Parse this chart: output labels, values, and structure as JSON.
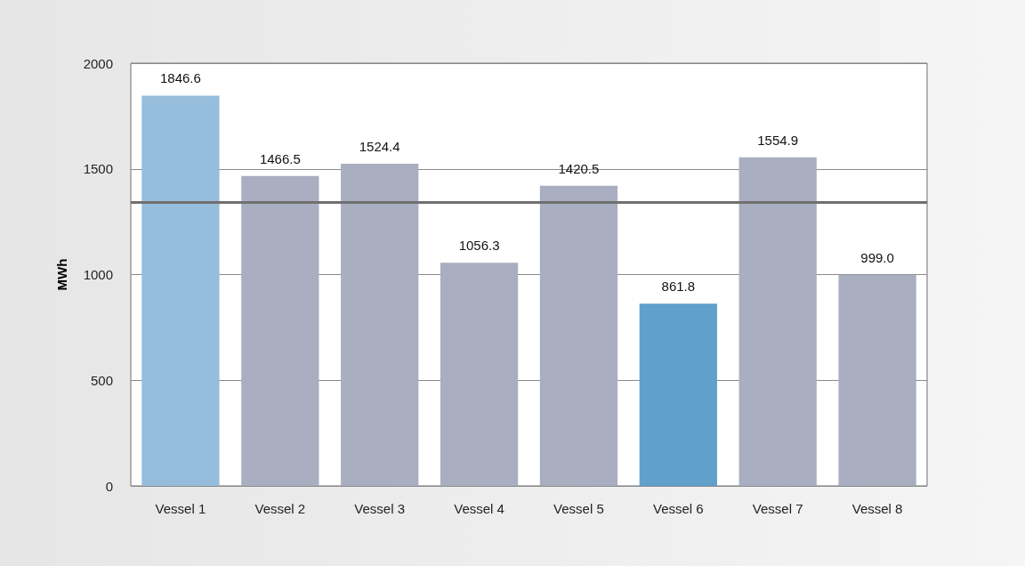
{
  "chart_data": {
    "type": "bar",
    "ylabel": "MWh",
    "categories": [
      "Vessel 1",
      "Vessel 2",
      "Vessel 3",
      "Vessel 4",
      "Vessel 5",
      "Vessel 6",
      "Vessel 7",
      "Vessel 8"
    ],
    "values": [
      1846.6,
      1466.5,
      1524.4,
      1056.3,
      1420.5,
      861.8,
      1554.9,
      999.0
    ],
    "colors": [
      "#97bddc",
      "#a9aec0",
      "#a9aec0",
      "#a9aec0",
      "#a9aec0",
      "#5fa1cb",
      "#a9aec0",
      "#a9aec0"
    ],
    "value_labels": [
      "1846.6",
      "1466.5",
      "1524.4",
      "1056.3",
      "1420.5",
      "861.8",
      "1554.9",
      "999.0"
    ],
    "ylim": [
      0,
      2000
    ],
    "yticks": [
      0,
      500,
      1000,
      1500,
      2000
    ],
    "grid": "y",
    "ref_lines": [
      {
        "axis": "y",
        "value": 1341,
        "color": "#707070"
      }
    ]
  }
}
